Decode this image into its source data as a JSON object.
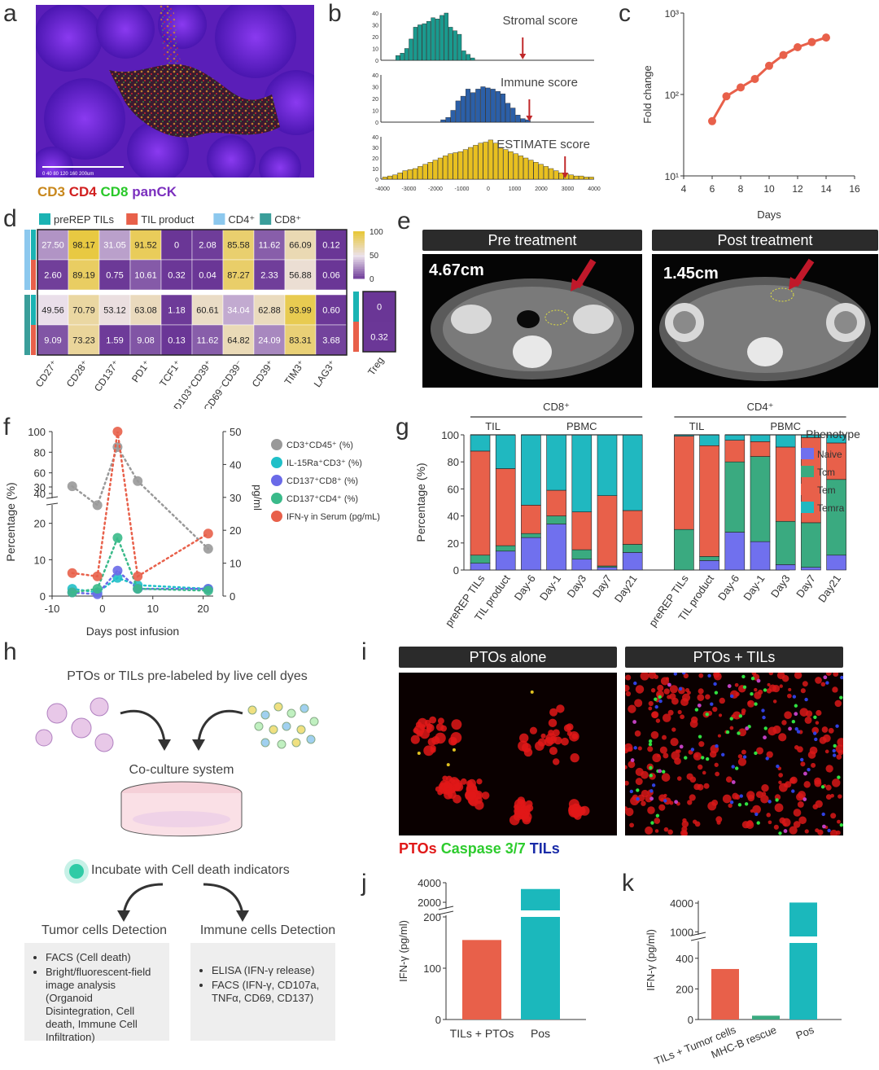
{
  "panels": {
    "a": {
      "label": "a",
      "scalebar": "0  40  80  120  160  200um",
      "markers": [
        {
          "text": "CD3",
          "color": "#c8871c"
        },
        {
          "text": "CD4",
          "color": "#d11f1f"
        },
        {
          "text": "CD8",
          "color": "#29c829"
        },
        {
          "text": "panCK",
          "color": "#7b2fbe"
        }
      ]
    },
    "b": {
      "label": "b"
    },
    "c": {
      "label": "c"
    },
    "d": {
      "label": "d",
      "legend": [
        {
          "text": "preREP TILs",
          "color": "#1bb3b3"
        },
        {
          "text": "TIL product",
          "color": "#e8604a"
        },
        {
          "text": "CD4⁺",
          "color": "#8cc8ee"
        },
        {
          "text": "CD8⁺",
          "color": "#3a9e9a"
        }
      ],
      "scale": [
        "100",
        "50",
        "0"
      ]
    },
    "e": {
      "label": "e",
      "headers": [
        "Pre treatment",
        "Post treatment"
      ],
      "measures": [
        "4.67cm",
        "1.45cm"
      ]
    },
    "f": {
      "label": "f"
    },
    "g": {
      "label": "g"
    },
    "h": {
      "label": "h",
      "title": "PTOs or TILs pre-labeled by live cell dyes",
      "coculture": "Co-culture system",
      "incubate": "Incubate with Cell death indicators",
      "tumor_title": "Tumor cells Detection",
      "immune_title": "Immune cells Detection",
      "tumor_items": [
        "FACS (Cell death)",
        "Bright/fluorescent-field image analysis (Organoid Disintegration, Cell death, Immune Cell Infiltration)"
      ],
      "immune_items": [
        "ELISA (IFN-γ release)",
        "FACS (IFN-γ, CD107a, TNFα, CD69, CD137)"
      ]
    },
    "i": {
      "label": "i",
      "headers": [
        "PTOs alone",
        "PTOs + TILs"
      ],
      "markers": [
        {
          "text": "PTOs",
          "color": "#e01818"
        },
        {
          "text": "Caspase 3/7",
          "color": "#2ecc2e"
        },
        {
          "text": "TILs",
          "color": "#1a2ca8"
        }
      ]
    },
    "j": {
      "label": "j"
    },
    "k": {
      "label": "k"
    }
  },
  "chart_data": [
    {
      "id": "b",
      "type": "histogram",
      "title": "",
      "annotations": [
        "Stromal score",
        "Immune score",
        "ESTIMATE score"
      ],
      "x_ticks": [
        "-4000",
        "-3000",
        "-2000",
        "-1000",
        "0",
        "1000",
        "2000",
        "3000",
        "4000"
      ],
      "y_ticks": [
        [
          "40",
          "30",
          "20",
          "10",
          "0"
        ],
        [
          "40",
          "30",
          "20",
          "10",
          "0"
        ],
        [
          "40",
          "30",
          "20",
          "10",
          "0"
        ]
      ],
      "series": [
        {
          "name": "Stromal score",
          "color": "#1a9a8e",
          "xlim": [
            -3500,
            -500
          ],
          "values": [
            4,
            6,
            10,
            18,
            28,
            30,
            31,
            33,
            36,
            35,
            38,
            40,
            28,
            25,
            22,
            8,
            5,
            2
          ]
        },
        {
          "name": "Immune score",
          "color": "#2b5fa8",
          "xlim": [
            -1800,
            1600
          ],
          "values": [
            2,
            4,
            10,
            18,
            22,
            28,
            25,
            28,
            30,
            29,
            28,
            26,
            24,
            16,
            12,
            6,
            3,
            2
          ]
        },
        {
          "name": "ESTIMATE score",
          "color": "#e8c020",
          "xlim": [
            -4000,
            4000
          ],
          "values": [
            2,
            3,
            4,
            6,
            8,
            9,
            10,
            12,
            14,
            16,
            18,
            20,
            22,
            24,
            25,
            26,
            28,
            30,
            32,
            34,
            35,
            37,
            34,
            30,
            28,
            26,
            24,
            22,
            20,
            18,
            16,
            14,
            12,
            10,
            8,
            6,
            5,
            4,
            3,
            3,
            2,
            2
          ]
        }
      ],
      "markers_x": [
        1300,
        1550,
        2900
      ]
    },
    {
      "id": "c",
      "type": "line",
      "xlabel": "Days",
      "ylabel": "Fold change",
      "x_ticks": [
        "4",
        "6",
        "8",
        "10",
        "12",
        "14",
        "16"
      ],
      "y_ticks": [
        "10³",
        "10²",
        "10¹"
      ],
      "xlim": [
        4,
        16
      ],
      "ylim_log": [
        1,
        3
      ],
      "x": [
        6,
        7,
        8,
        9,
        10,
        11,
        12,
        13,
        14
      ],
      "y": [
        47,
        95,
        122,
        155,
        225,
        305,
        380,
        440,
        500
      ],
      "color": "#e8604a"
    },
    {
      "id": "d",
      "type": "heatmap",
      "columns": [
        "CD27⁺",
        "CD28⁺",
        "CD137⁺",
        "PD1⁺",
        "TCF1⁺",
        "CD103⁺CD39⁺",
        "CD69⁻CD39⁻",
        "CD39⁺",
        "TIM3⁺",
        "LAG3⁺"
      ],
      "rows": [
        {
          "group": "CD4⁺",
          "source": "preREP TILs",
          "values": [
            "27.50",
            "98.17",
            "31.05",
            "91.52",
            "0",
            "2.08",
            "85.58",
            "11.62",
            "66.09",
            "0.12"
          ]
        },
        {
          "group": "CD4⁺",
          "source": "TIL product",
          "values": [
            "2.60",
            "89.19",
            "0.75",
            "10.61",
            "0.32",
            "0.04",
            "87.27",
            "2.33",
            "56.88",
            "0.06"
          ]
        },
        {
          "group": "CD8⁺",
          "source": "preREP TILs",
          "values": [
            "49.56",
            "70.79",
            "53.12",
            "63.08",
            "1.18",
            "60.61",
            "34.04",
            "62.88",
            "93.99",
            "0.60"
          ]
        },
        {
          "group": "CD8⁺",
          "source": "TIL product",
          "values": [
            "9.09",
            "73.23",
            "1.59",
            "9.08",
            "0.13",
            "11.62",
            "64.82",
            "24.09",
            "83.31",
            "3.68"
          ]
        }
      ],
      "treg": {
        "label": "Treg",
        "values": [
          "0",
          "0.32"
        ]
      }
    },
    {
      "id": "f",
      "type": "scatter",
      "xlabel": "Days post infusion",
      "ylabel": "Percentage (%)",
      "ylabel_right": "pg/ml",
      "x_ticks": [
        "-10",
        "0",
        "10",
        "20"
      ],
      "y_ticks_left": [
        "100",
        "80",
        "60",
        "40",
        "30",
        "20",
        "10",
        "0"
      ],
      "y_ticks_right": [
        "50",
        "40",
        "30",
        "20",
        "10",
        "0"
      ],
      "series": [
        {
          "name": "CD3⁺CD45⁺ (%)",
          "color": "#999999",
          "x": [
            -6,
            -1,
            3,
            7,
            21
          ],
          "y": [
            47,
            25,
            85,
            52,
            13
          ]
        },
        {
          "name": "IL-15Ra⁺CD3⁺ (%)",
          "color": "#20c0c8",
          "x": [
            -6,
            -1,
            3,
            7,
            21
          ],
          "y": [
            2,
            1,
            5,
            3,
            2
          ]
        },
        {
          "name": "CD137⁺CD8⁺ (%)",
          "color": "#6a6ae8",
          "x": [
            -6,
            -1,
            3,
            7,
            21
          ],
          "y": [
            1,
            0.5,
            7,
            2,
            2
          ]
        },
        {
          "name": "CD137⁺CD4⁺ (%)",
          "color": "#3aba8a",
          "x": [
            -6,
            -1,
            3,
            7,
            21
          ],
          "y": [
            1,
            2,
            16,
            2,
            1.5
          ]
        },
        {
          "name": "IFN-γ in Serum (pg/mL)",
          "color": "#e8604a",
          "x": [
            -6,
            -1,
            3,
            7,
            21
          ],
          "y": [
            7,
            6,
            50,
            6,
            19
          ]
        }
      ]
    },
    {
      "id": "g",
      "type": "stacked-bar",
      "ylabel": "Percentage (%)",
      "y_ticks": [
        "100",
        "80",
        "60",
        "40",
        "20",
        "0"
      ],
      "groups": [
        "CD8⁺",
        "CD4⁺"
      ],
      "subgroups": [
        "TIL",
        "PBMC",
        "TIL",
        "PBMC"
      ],
      "legend_title": "Phenotype",
      "categories": [
        "preREP TILs",
        "TIL product",
        "Day-6",
        "Day-1",
        "Day3",
        "Day7",
        "Day21",
        "preREP TILs",
        "TIL product",
        "Day-6",
        "Day-1",
        "Day3",
        "Day7",
        "Day21"
      ],
      "series": [
        {
          "name": "Naive",
          "color": "#7070ee",
          "values": [
            5,
            14,
            24,
            34,
            8,
            2,
            13,
            0,
            7,
            28,
            21,
            4,
            2,
            11
          ]
        },
        {
          "name": "Tcm",
          "color": "#3aaa80",
          "values": [
            6,
            4,
            3,
            6,
            7,
            1,
            6,
            30,
            3,
            52,
            63,
            32,
            33,
            56
          ]
        },
        {
          "name": "Tem",
          "color": "#e8604a",
          "values": [
            77,
            57,
            21,
            19,
            28,
            52,
            25,
            69,
            82,
            16,
            11,
            55,
            63,
            27
          ]
        },
        {
          "name": "Temra",
          "color": "#20b8c0",
          "values": [
            12,
            25,
            52,
            41,
            57,
            45,
            56,
            1,
            8,
            4,
            5,
            9,
            2,
            6
          ]
        }
      ]
    },
    {
      "id": "j",
      "type": "bar",
      "ylabel": "IFN-γ (pg/ml)",
      "y_ticks": [
        "4000",
        "2000",
        "200",
        "100",
        "0"
      ],
      "categories": [
        "TILs + PTOs",
        "Pos"
      ],
      "values": [
        155,
        3200
      ],
      "colors": [
        "#e8604a",
        "#1bb8bc"
      ]
    },
    {
      "id": "k",
      "type": "bar",
      "ylabel": "IFN-γ (pg/ml)",
      "y_ticks": [
        "4000",
        "1000",
        "400",
        "200",
        "0"
      ],
      "categories": [
        "TILs + Tumor cells",
        "MHC-B rescue",
        "Pos"
      ],
      "values": [
        330,
        25,
        4100
      ],
      "colors": [
        "#e8604a",
        "#3aaa80",
        "#1bb8bc"
      ]
    }
  ]
}
